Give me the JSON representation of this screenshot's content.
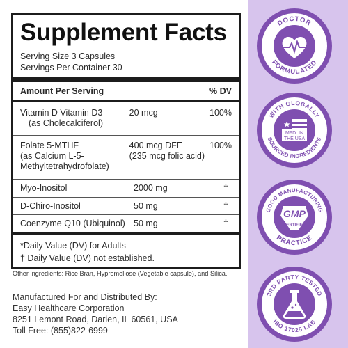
{
  "facts": {
    "title": "Supplement Facts",
    "serving_size": "Serving Size 3 Capsules",
    "servings_per_container": "Servings Per Container 30",
    "header_amount": "Amount Per Serving",
    "header_dv": "% DV",
    "rows": [
      {
        "name": "Vitamin D Vitamin D3",
        "name2": "(as Cholecalciferol)",
        "amount": "20 mcg",
        "dv": "100%"
      },
      {
        "name": "Folate 5-MTHF",
        "name2": "(as Calcium L-5-",
        "name3": "Methyltetrahydrofolate)",
        "amount": "400 mcg DFE",
        "amount2": "(235 mcg folic acid)",
        "dv": "100%"
      },
      {
        "name": "Myo-Inositol",
        "amount": "2000 mg",
        "dv": "†"
      },
      {
        "name": "D-Chiro-Inositol",
        "amount": "50 mg",
        "dv": "†"
      },
      {
        "name": "Coenzyme Q10 (Ubiquinol)",
        "amount": "50 mg",
        "dv": "†"
      }
    ],
    "footnote1": "*Daily Value (DV) for Adults",
    "footnote2": "† Daily Value (DV) not established."
  },
  "other_ingredients": "Other ingredients: Rice Bran, Hypromellose (Vegetable capsule), and Silica.",
  "manufacturer": {
    "line1": "Manufactured For and Distributed By:",
    "line2": "Easy Healthcare Corporation",
    "line3": "8251 Lemont Road, Darien, IL 60561, USA",
    "line4": "Toll Free: (855)822-6999"
  },
  "badges": {
    "doctor": {
      "top": "DOCTOR",
      "bottom": "FORMULATED",
      "icon": "heart-pulse-icon"
    },
    "sourced": {
      "top": "WITH GLOBALLY",
      "bottom": "SOURCED INGREDIENTS",
      "center1": "MFD. IN",
      "center2": "THE USA",
      "icon": "us-flag-icon"
    },
    "gmp": {
      "top": "GOOD MANUFACTURING",
      "bottom": "PRACTICE",
      "center1": "GMP",
      "center2": "CERTIFIED",
      "icon": "gmp-certified-icon"
    },
    "lab": {
      "top": "3RD PARTY TESTED",
      "bottom": "ISO 17025 LAB",
      "icon": "lab-flask-icon"
    }
  },
  "colors": {
    "side_bg": "#d7c4ed",
    "badge_purple": "#7f4fb0",
    "badge_ring": "#ffffff"
  }
}
